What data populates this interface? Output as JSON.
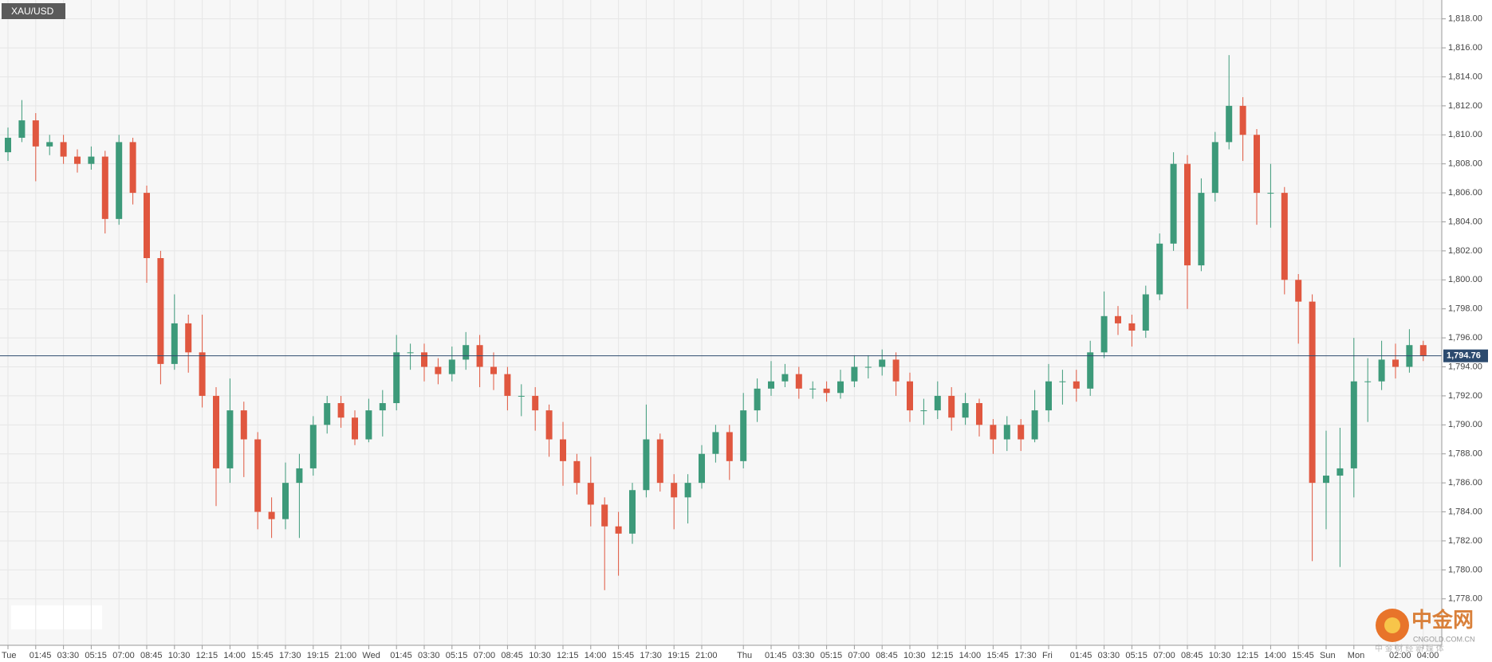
{
  "chart_data": {
    "type": "candlestick",
    "title": "XAU/USD",
    "categories": [
      "Tue",
      null,
      "01:45",
      null,
      "03:30",
      null,
      "05:15",
      null,
      "07:00",
      null,
      "08:45",
      null,
      "10:30",
      null,
      "12:15",
      null,
      "14:00",
      null,
      "15:45",
      null,
      "17:30",
      null,
      "19:15",
      null,
      "21:00",
      null,
      "Wed",
      null,
      "01:45",
      null,
      "03:30",
      null,
      "05:15",
      null,
      "07:00",
      null,
      "08:45",
      null,
      "10:30",
      null,
      "12:15",
      null,
      "14:00",
      null,
      "15:45",
      null,
      "17:30",
      null,
      "19:15",
      null,
      "21:00",
      null,
      null,
      "Thu",
      null,
      "01:45",
      null,
      "03:30",
      null,
      "05:15",
      null,
      "07:00",
      null,
      "08:45",
      null,
      "10:30",
      null,
      "12:15",
      null,
      "14:00",
      null,
      "15:45",
      null,
      "17:30",
      null,
      "Fri",
      null,
      "01:45",
      null,
      "03:30",
      null,
      "05:15",
      null,
      "07:00",
      null,
      "08:45",
      null,
      "10:30",
      null,
      "12:15",
      null,
      "14:00",
      null,
      "15:45",
      null,
      "Sun",
      null,
      "Mon",
      null,
      null,
      "02:00",
      null,
      "04:00"
    ],
    "open": [
      1808.8,
      1809.8,
      1811,
      1809.2,
      1809.5,
      1808.5,
      1808,
      1808.5,
      1804.2,
      1809.5,
      1806,
      1801.5,
      1794.2,
      1797,
      1795,
      1792,
      1787,
      1791,
      1789,
      1784,
      1783.5,
      1786,
      1787,
      1790,
      1791.5,
      1790.5,
      1789,
      1791,
      1791.5,
      1795,
      1795,
      1794,
      1793.5,
      1794.5,
      1795.5,
      1794,
      1793.5,
      1792,
      1792,
      1791,
      1789,
      1787.5,
      1786,
      1784.5,
      1783,
      1782.5,
      1785.5,
      1789,
      1786,
      1785,
      1786,
      1788,
      1789.5,
      1787.5,
      1791,
      1792.5,
      1793,
      1793.5,
      1792.5,
      1792.5,
      1792.2,
      1793,
      1794,
      1794,
      1794.5,
      1793,
      1791,
      1791,
      1792,
      1790.5,
      1791.5,
      1790,
      1789,
      1790,
      1789,
      1791,
      1793,
      1793,
      1792.5,
      1795,
      1797.5,
      1797,
      1796.5,
      1799,
      1802.5,
      1808,
      1801,
      1806,
      1809.5,
      1812,
      1810,
      1806,
      1806,
      1800,
      1798.5,
      1786,
      1786.5,
      1787,
      1793,
      1793,
      1794.5,
      1794,
      1795.5
    ],
    "high": [
      1810.5,
      1812.4,
      1811.5,
      1810,
      1810,
      1809,
      1809.2,
      1808.9,
      1810,
      1809.8,
      1806.5,
      1802,
      1799,
      1797.6,
      1797.6,
      1792.6,
      1793.2,
      1791.6,
      1789.5,
      1785,
      1787.4,
      1788,
      1790.6,
      1792,
      1792,
      1791,
      1791.8,
      1792.4,
      1796.2,
      1795.6,
      1795.6,
      1794.6,
      1795.4,
      1796.4,
      1796.2,
      1795,
      1794,
      1792.8,
      1792.6,
      1791.4,
      1790.2,
      1788,
      1787.8,
      1785,
      1784,
      1786,
      1791.4,
      1789.4,
      1786.6,
      1786.6,
      1788.6,
      1790,
      1790,
      1792.2,
      1793.2,
      1794.4,
      1794.2,
      1794,
      1793,
      1793,
      1793.8,
      1794.8,
      1794.8,
      1795.2,
      1795,
      1793.6,
      1791.8,
      1793,
      1792.6,
      1792.2,
      1791.8,
      1790.4,
      1790.6,
      1790.4,
      1792.4,
      1794.2,
      1793.8,
      1793.8,
      1795.8,
      1799.2,
      1798.2,
      1797.6,
      1799.6,
      1803.2,
      1808.8,
      1808.6,
      1807,
      1810.2,
      1815.5,
      1812.6,
      1810.4,
      1808,
      1806.4,
      1800.4,
      1799,
      1789.6,
      1789.8,
      1796,
      1794.6,
      1795.8,
      1795.6,
      1796.6,
      1795.8
    ],
    "low": [
      1808.2,
      1809.5,
      1806.8,
      1808.6,
      1808,
      1807.4,
      1807.6,
      1803.2,
      1803.8,
      1805.2,
      1799.8,
      1792.8,
      1793.8,
      1793.6,
      1791.2,
      1784.4,
      1786,
      1786.4,
      1782.8,
      1782.2,
      1782.8,
      1782.2,
      1786.5,
      1789.4,
      1789.8,
      1788.6,
      1788.8,
      1789.2,
      1791,
      1793.8,
      1793,
      1792.8,
      1793,
      1793.8,
      1792.6,
      1792.4,
      1791,
      1790.6,
      1789.6,
      1787.8,
      1785.8,
      1785.2,
      1783,
      1778.6,
      1779.6,
      1781.8,
      1785,
      1785.4,
      1782.8,
      1783.2,
      1785.6,
      1787.4,
      1786.2,
      1787,
      1790.2,
      1792,
      1792.6,
      1791.8,
      1791.8,
      1791.6,
      1791.8,
      1792.6,
      1793.2,
      1793.4,
      1792,
      1790.2,
      1790,
      1790.4,
      1789.6,
      1790,
      1789.2,
      1788,
      1788.2,
      1788.2,
      1788.8,
      1790.2,
      1791.4,
      1791.6,
      1792,
      1794.6,
      1796.2,
      1795.4,
      1796,
      1798.6,
      1802,
      1798,
      1800.6,
      1805.4,
      1809,
      1808.2,
      1803.8,
      1803.6,
      1799,
      1795.6,
      1780.6,
      1782.8,
      1780.2,
      1785,
      1790.2,
      1792.4,
      1793.2,
      1793.6,
      1794.4
    ],
    "close": [
      1809.8,
      1811,
      1809.2,
      1809.5,
      1808.5,
      1808,
      1808.5,
      1804.2,
      1809.5,
      1806,
      1801.5,
      1794.2,
      1797,
      1795,
      1792,
      1787,
      1791,
      1789,
      1784,
      1783.5,
      1786,
      1787,
      1790,
      1791.5,
      1790.5,
      1789,
      1791,
      1791.5,
      1795,
      1795,
      1794,
      1793.5,
      1794.5,
      1795.5,
      1794,
      1793.5,
      1792,
      1792,
      1791,
      1789,
      1787.5,
      1786,
      1784.5,
      1783,
      1782.5,
      1785.5,
      1789,
      1786,
      1785,
      1786,
      1788,
      1789.5,
      1787.5,
      1791,
      1792.5,
      1793,
      1793.5,
      1792.5,
      1792.5,
      1792.2,
      1793,
      1794,
      1794,
      1794.5,
      1793,
      1791,
      1791,
      1792,
      1790.5,
      1791.5,
      1790,
      1789,
      1790,
      1789,
      1791,
      1793,
      1793,
      1792.5,
      1795,
      1797.5,
      1797,
      1796.5,
      1799,
      1802.5,
      1808,
      1801,
      1806,
      1809.5,
      1812,
      1810,
      1806,
      1806,
      1800,
      1798.5,
      1786,
      1786.5,
      1787,
      1793,
      1793,
      1794.5,
      1794,
      1795.5,
      1794.76
    ],
    "up_color": "#3d9a7a",
    "down_color": "#e0573f",
    "ylim": [
      1774.8,
      1819.3
    ],
    "yticks": [
      {
        "value": 1778,
        "label": "1,778.00"
      },
      {
        "value": 1780,
        "label": "1,780.00"
      },
      {
        "value": 1782,
        "label": "1,782.00"
      },
      {
        "value": 1784,
        "label": "1,784.00"
      },
      {
        "value": 1786,
        "label": "1,786.00"
      },
      {
        "value": 1788,
        "label": "1,788.00"
      },
      {
        "value": 1790,
        "label": "1,790.00"
      },
      {
        "value": 1792,
        "label": "1,792.00"
      },
      {
        "value": 1794,
        "label": "1,794.00"
      },
      {
        "value": 1796,
        "label": "1,796.00"
      },
      {
        "value": 1798,
        "label": "1,798.00"
      },
      {
        "value": 1800,
        "label": "1,800.00"
      },
      {
        "value": 1802,
        "label": "1,802.00"
      },
      {
        "value": 1804,
        "label": "1,804.00"
      },
      {
        "value": 1806,
        "label": "1,806.00"
      },
      {
        "value": 1808,
        "label": "1,808.00"
      },
      {
        "value": 1810,
        "label": "1,810.00"
      },
      {
        "value": 1812,
        "label": "1,812.00"
      },
      {
        "value": 1814,
        "label": "1,814.00"
      },
      {
        "value": 1816,
        "label": "1,816.00"
      },
      {
        "value": 1818,
        "label": "1,818.00"
      }
    ],
    "last_price": {
      "value": 1794.76,
      "label": "1,794.76"
    },
    "grid": true,
    "watermark": {
      "brand": "中金网",
      "site": "CNGOLD.COM.CN",
      "tagline": "中 金 财 经 新 媒 体"
    }
  }
}
